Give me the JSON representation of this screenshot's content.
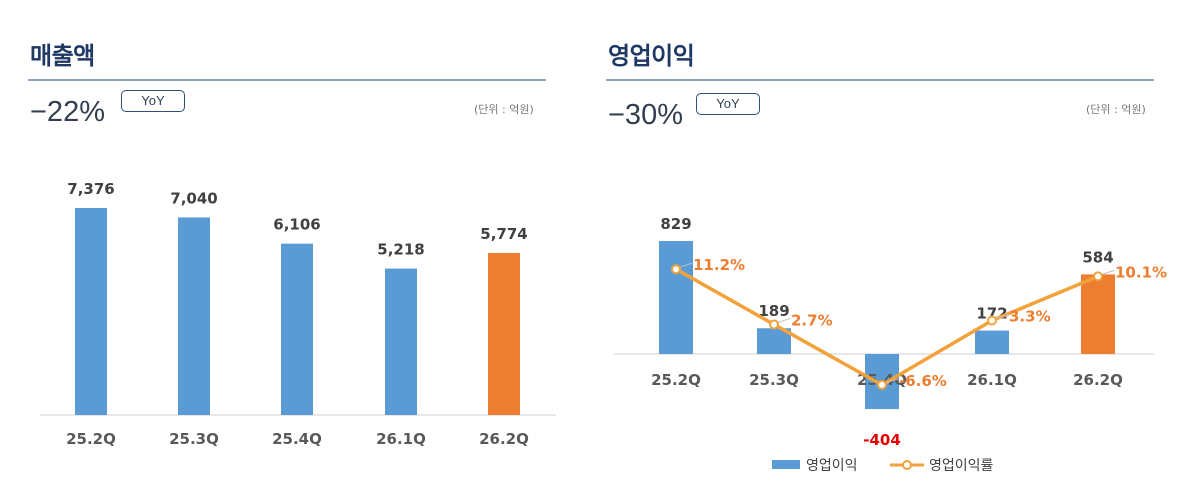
{
  "colors": {
    "bar_blue": "#5b9bd5",
    "bar_orange": "#ed7d31",
    "line_orange": "#f2a23a",
    "title_navy": "#1f3864",
    "negative_red": "#e60000"
  },
  "chart_data": [
    {
      "type": "bar",
      "title": "매출액",
      "yoy_value": "−22%",
      "yoy_badge": "YoY",
      "unit": "(단위 : 억원)",
      "categories": [
        "25.2Q",
        "25.3Q",
        "25.4Q",
        "26.1Q",
        "26.2Q"
      ],
      "values": [
        7376,
        7040,
        6106,
        5218,
        5774
      ],
      "value_labels": [
        "7,376",
        "7,040",
        "6,106",
        "5,218",
        "5,774"
      ],
      "highlight_index": 4,
      "ylim": [
        0,
        8000
      ],
      "grid": false
    },
    {
      "type": "bar",
      "title": "영업이익",
      "yoy_value": "−30%",
      "yoy_badge": "YoY",
      "unit": "(단위 : 억원)",
      "categories": [
        "25.2Q",
        "25.3Q",
        "25.4Q",
        "26.1Q",
        "26.2Q"
      ],
      "series": [
        {
          "name": "영업이익",
          "type": "bar",
          "values": [
            829,
            189,
            -404,
            172,
            584
          ],
          "value_labels": [
            "829",
            "189",
            "-404",
            "172",
            "584"
          ]
        },
        {
          "name": "영업이익률",
          "type": "line",
          "values": [
            11.2,
            2.7,
            -6.6,
            3.3,
            10.1
          ],
          "value_labels": [
            "11.2%",
            "2.7%",
            "-6.6%",
            "3.3%",
            "10.1%"
          ]
        }
      ],
      "highlight_index": 4,
      "legend_position": "bottom",
      "grid": false
    }
  ]
}
